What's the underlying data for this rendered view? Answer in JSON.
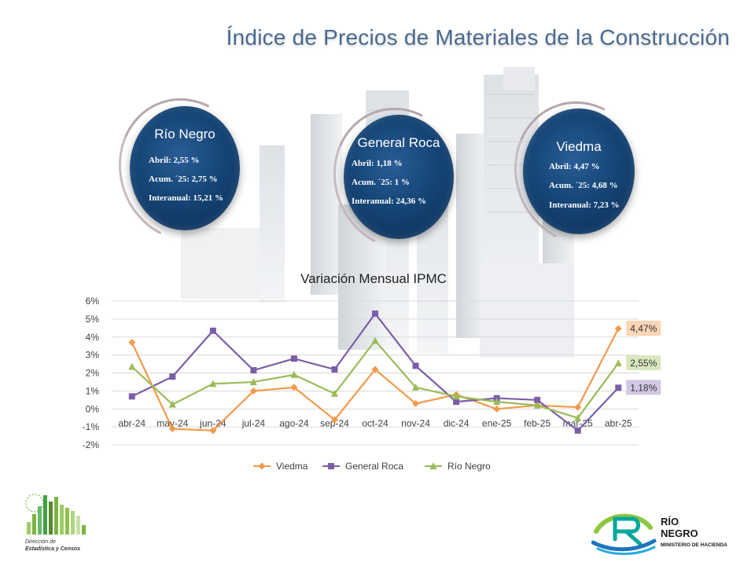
{
  "title": "Índice de Precios de Materiales de la Construcción",
  "regions": [
    {
      "name": "Río Negro",
      "lines": [
        "Abril: 2,55 %",
        "Acum. ´25: 2,75 %",
        "Interanual: 15,21 %"
      ]
    },
    {
      "name": "General Roca",
      "lines": [
        "Abril: 1,18 %",
        "Acum. ´25: 1 %",
        "Interanual: 24,36 %"
      ]
    },
    {
      "name": "Viedma",
      "lines": [
        "Abril: 4,47 %",
        "Acum. ´25: 4,68 %",
        "Interanual: 7,23 %"
      ]
    }
  ],
  "chart_data": {
    "type": "line",
    "title": "Variación Mensual IPMC",
    "categories": [
      "abr-24",
      "may-24",
      "jun-24",
      "jul-24",
      "ago-24",
      "sep-24",
      "oct-24",
      "nov-24",
      "dic-24",
      "ene-25",
      "feb-25",
      "mar-25",
      "abr-25"
    ],
    "yticks": [
      "6%",
      "5%",
      "4%",
      "3%",
      "2%",
      "1%",
      "0%",
      "-1%",
      "-2%"
    ],
    "ylim": [
      -2,
      6
    ],
    "grid": true,
    "legend_position": "bottom",
    "series": [
      {
        "name": "Viedma",
        "color": "#f39a4a",
        "marker": "diamond",
        "values": [
          3.7,
          -1.1,
          -1.2,
          1.0,
          1.2,
          -0.6,
          2.2,
          0.3,
          0.8,
          0.0,
          0.2,
          0.1,
          4.47
        ],
        "end_label": "4,47%"
      },
      {
        "name": "General Roca",
        "color": "#7b5ea7",
        "marker": "square",
        "values": [
          0.7,
          1.8,
          4.35,
          2.15,
          2.8,
          2.2,
          5.3,
          2.4,
          0.4,
          0.6,
          0.5,
          -1.2,
          1.18
        ],
        "end_label": "1,18%"
      },
      {
        "name": "Río Negro",
        "color": "#9bbb59",
        "marker": "triangle",
        "values": [
          2.35,
          0.25,
          1.4,
          1.5,
          1.9,
          0.85,
          3.8,
          1.2,
          0.7,
          0.4,
          0.2,
          -0.5,
          2.55
        ],
        "end_label": "2,55%"
      }
    ]
  },
  "footer": {
    "left_logo_text": [
      "Dirección de",
      "Estadística y Censos"
    ],
    "right_logo_text": [
      "RÍO",
      "NEGRO",
      "MINISTERIO DE HACIENDA"
    ]
  }
}
